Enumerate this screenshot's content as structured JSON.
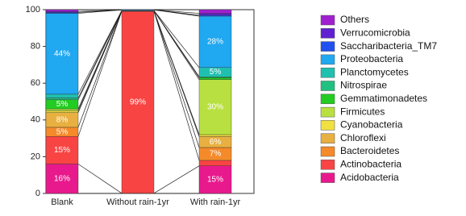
{
  "chart_data": {
    "type": "stacked_bar",
    "categories": [
      "Blank",
      "Without rain-1yr",
      "With rain-1yr"
    ],
    "ylim": [
      0,
      100
    ],
    "yticks": [
      0,
      20,
      40,
      60,
      80,
      100
    ],
    "series": [
      {
        "name": "Acidobacteria",
        "color": "#e8198c",
        "values": [
          16,
          0.1,
          15
        ],
        "value_labels": [
          "16%",
          null,
          "15%"
        ]
      },
      {
        "name": "Actinobacteria",
        "color": "#f94444",
        "values": [
          15,
          99,
          3
        ],
        "value_labels": [
          "15%",
          "99%",
          null
        ]
      },
      {
        "name": "Bacteroidetes",
        "color": "#f58a2a",
        "values": [
          5,
          0.1,
          7
        ],
        "value_labels": [
          "5%",
          null,
          "7%"
        ]
      },
      {
        "name": "Chloroflexi",
        "color": "#e8b040",
        "values": [
          8,
          0.1,
          6
        ],
        "value_labels": [
          "8%",
          null,
          "6%"
        ]
      },
      {
        "name": "Cyanobacteria",
        "color": "#f0e040",
        "values": [
          1,
          0,
          1
        ],
        "value_labels": [
          null,
          null,
          null
        ]
      },
      {
        "name": "Firmicutes",
        "color": "#b8e040",
        "values": [
          1,
          0.2,
          30
        ],
        "value_labels": [
          null,
          null,
          "30%"
        ]
      },
      {
        "name": "Gemmatimonadetes",
        "color": "#22cc22",
        "values": [
          5,
          0,
          1
        ],
        "value_labels": [
          "5%",
          null,
          null
        ]
      },
      {
        "name": "Nitrospirae",
        "color": "#20c080",
        "values": [
          1,
          0,
          0.5
        ],
        "value_labels": [
          null,
          null,
          null
        ]
      },
      {
        "name": "Planctomycetes",
        "color": "#20c0b0",
        "values": [
          2,
          0,
          5
        ],
        "value_labels": [
          null,
          null,
          "5%"
        ]
      },
      {
        "name": "Proteobacteria",
        "color": "#20a8f0",
        "values": [
          44,
          0.4,
          28
        ],
        "value_labels": [
          "44%",
          null,
          "28%"
        ]
      },
      {
        "name": "Saccharibacteria_TM7",
        "color": "#2050f0",
        "values": [
          0.5,
          0,
          0.5
        ],
        "value_labels": [
          null,
          null,
          null
        ]
      },
      {
        "name": "Verrucomicrobia",
        "color": "#6020d0",
        "values": [
          0.5,
          0,
          1
        ],
        "value_labels": [
          null,
          null,
          null
        ]
      },
      {
        "name": "Others",
        "color": "#a020d0",
        "values": [
          1,
          0.1,
          2
        ],
        "value_labels": [
          null,
          null,
          null
        ]
      }
    ]
  }
}
